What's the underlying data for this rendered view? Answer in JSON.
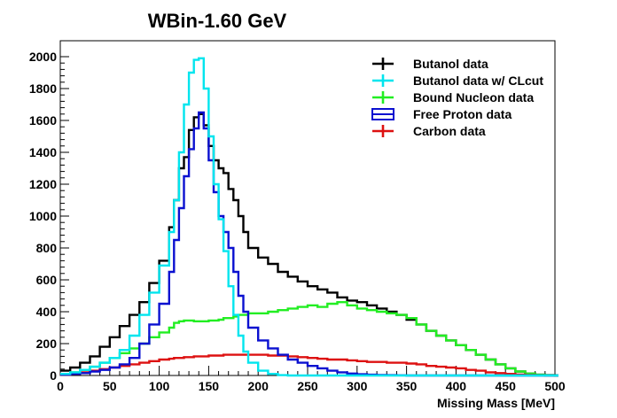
{
  "chart_data": {
    "type": "line",
    "title": "WBin-1.60 GeV",
    "xlabel": "Missing Mass [MeV]",
    "ylabel": "",
    "xlim": [
      0,
      500
    ],
    "ylim": [
      0,
      2100
    ],
    "xticks": [
      "0",
      "50",
      "100",
      "150",
      "200",
      "250",
      "300",
      "350",
      "400",
      "450",
      "500"
    ],
    "yticks": [
      "0",
      "200",
      "400",
      "600",
      "800",
      "1000",
      "1200",
      "1400",
      "1600",
      "1800",
      "2000"
    ],
    "grid": false,
    "legend_position": "top-right",
    "x": [
      0,
      10,
      20,
      30,
      40,
      50,
      60,
      70,
      80,
      90,
      100,
      110,
      115,
      120,
      125,
      130,
      135,
      140,
      145,
      150,
      155,
      160,
      165,
      170,
      175,
      180,
      185,
      190,
      200,
      210,
      220,
      230,
      240,
      250,
      260,
      270,
      280,
      290,
      300,
      310,
      320,
      330,
      340,
      350,
      360,
      370,
      380,
      390,
      400,
      410,
      420,
      430,
      440,
      450,
      460,
      470,
      480,
      490,
      500
    ],
    "series": [
      {
        "name": "Butanol data",
        "color": "#000000",
        "values": [
          30,
          50,
          80,
          120,
          180,
          240,
          310,
          380,
          460,
          580,
          720,
          930,
          1100,
          1300,
          1370,
          1540,
          1620,
          1640,
          1570,
          1440,
          1350,
          1300,
          1270,
          1170,
          1100,
          1000,
          900,
          800,
          740,
          700,
          650,
          620,
          590,
          560,
          540,
          520,
          490,
          470,
          460,
          440,
          420,
          400,
          380,
          350,
          320,
          280,
          250,
          220,
          190,
          160,
          130,
          100,
          70,
          45,
          25,
          12,
          5,
          2,
          0
        ]
      },
      {
        "name": "Butanol data w/ CLcut",
        "color": "#00e5ee",
        "values": [
          10,
          20,
          35,
          55,
          80,
          110,
          160,
          250,
          380,
          520,
          690,
          900,
          1100,
          1400,
          1700,
          1900,
          1980,
          1990,
          1800,
          1500,
          1200,
          980,
          780,
          560,
          380,
          250,
          150,
          80,
          30,
          10,
          2,
          0,
          0,
          0,
          0,
          0,
          0,
          0,
          0,
          0,
          0,
          0,
          0,
          0,
          0,
          0,
          0,
          0,
          0,
          0,
          0,
          0,
          0,
          0,
          0,
          0,
          0,
          0,
          0
        ]
      },
      {
        "name": "Bound Nucleon data",
        "color": "#22ee22",
        "values": [
          10,
          20,
          35,
          55,
          80,
          110,
          140,
          170,
          200,
          240,
          270,
          300,
          330,
          340,
          345,
          345,
          340,
          340,
          340,
          345,
          345,
          350,
          360,
          360,
          370,
          380,
          380,
          390,
          390,
          400,
          410,
          420,
          430,
          440,
          430,
          450,
          460,
          440,
          420,
          410,
          400,
          390,
          380,
          360,
          320,
          280,
          250,
          220,
          190,
          160,
          130,
          100,
          70,
          45,
          25,
          12,
          5,
          2,
          0
        ]
      },
      {
        "name": "Free Proton data",
        "color": "#0a10d0",
        "values": [
          5,
          10,
          15,
          25,
          35,
          50,
          70,
          110,
          200,
          320,
          450,
          650,
          850,
          1050,
          1250,
          1420,
          1550,
          1650,
          1550,
          1350,
          1150,
          1000,
          900,
          800,
          650,
          500,
          400,
          300,
          220,
          170,
          130,
          100,
          80,
          60,
          45,
          30,
          20,
          12,
          8,
          5,
          3,
          2,
          1,
          0,
          0,
          0,
          0,
          0,
          0,
          0,
          0,
          0,
          0,
          0,
          0,
          0,
          0,
          0,
          0
        ]
      },
      {
        "name": "Carbon data",
        "color": "#dd1111",
        "values": [
          5,
          10,
          20,
          30,
          40,
          50,
          60,
          70,
          80,
          90,
          100,
          105,
          110,
          110,
          115,
          115,
          120,
          120,
          120,
          125,
          125,
          125,
          130,
          130,
          130,
          130,
          130,
          130,
          130,
          125,
          125,
          120,
          115,
          110,
          105,
          100,
          100,
          95,
          90,
          85,
          85,
          80,
          80,
          75,
          70,
          60,
          55,
          50,
          45,
          35,
          30,
          20,
          15,
          10,
          6,
          3,
          1,
          0,
          0
        ]
      }
    ]
  }
}
